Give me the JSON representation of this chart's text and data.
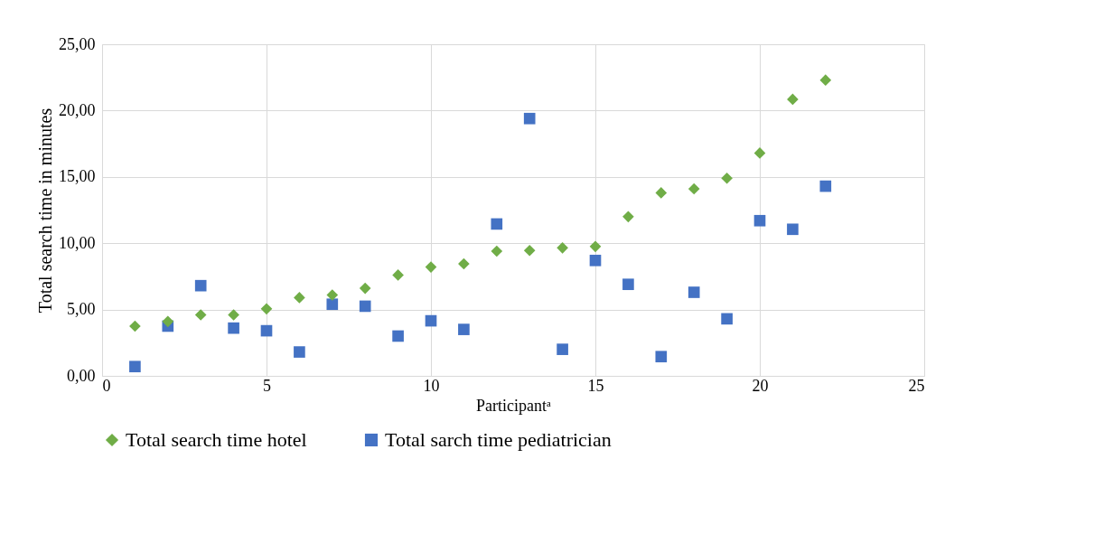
{
  "chart_data": {
    "type": "scatter",
    "xlabel": "Participantᵃ",
    "ylabel": "Total search time in minutes",
    "x": [
      1,
      2,
      3,
      4,
      5,
      6,
      7,
      8,
      9,
      10,
      11,
      12,
      13,
      14,
      15,
      16,
      17,
      18,
      19,
      20,
      21,
      22
    ],
    "series": [
      {
        "name": "Total search time hotel",
        "color": "#70ad47",
        "marker": "diamond",
        "values": [
          3.75,
          4.1,
          4.6,
          4.6,
          5.05,
          5.9,
          6.1,
          6.6,
          7.6,
          8.2,
          8.45,
          9.4,
          9.45,
          9.65,
          9.75,
          12.0,
          13.8,
          14.1,
          14.9,
          16.8,
          20.85,
          22.3
        ]
      },
      {
        "name": "Total sarch time pediatrician",
        "color": "#4472c4",
        "marker": "square",
        "values": [
          0.7,
          3.75,
          6.8,
          3.6,
          3.4,
          1.8,
          5.4,
          5.25,
          3.0,
          4.15,
          3.5,
          11.45,
          19.4,
          2.0,
          8.7,
          6.9,
          1.45,
          6.3,
          4.3,
          11.7,
          11.05,
          14.3
        ]
      }
    ],
    "xlim": [
      0,
      25
    ],
    "xticks": [
      0,
      5,
      10,
      15,
      20,
      25
    ],
    "ylim": [
      0,
      25
    ],
    "yticks": [
      {
        "value": 0,
        "label": "0,00"
      },
      {
        "value": 5,
        "label": "5,00"
      },
      {
        "value": 10,
        "label": "10,00"
      },
      {
        "value": 15,
        "label": "15,00"
      },
      {
        "value": 20,
        "label": "20,00"
      },
      {
        "value": 25,
        "label": "25,00"
      }
    ],
    "grid": true,
    "legend": "bottom"
  }
}
